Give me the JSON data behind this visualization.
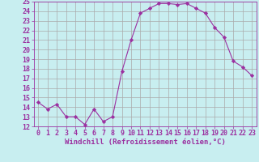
{
  "x": [
    0,
    1,
    2,
    3,
    4,
    5,
    6,
    7,
    8,
    9,
    10,
    11,
    12,
    13,
    14,
    15,
    16,
    17,
    18,
    19,
    20,
    21,
    22,
    23
  ],
  "y": [
    14.5,
    13.8,
    14.3,
    13.0,
    13.0,
    12.2,
    13.8,
    12.5,
    13.0,
    17.7,
    21.0,
    23.8,
    24.3,
    24.8,
    24.8,
    24.7,
    24.8,
    24.3,
    23.8,
    22.3,
    21.3,
    18.8,
    18.2,
    17.3
  ],
  "line_color": "#9B30A0",
  "marker": "D",
  "marker_size": 2.2,
  "bg_color": "#C8EEF0",
  "grid_color": "#AAAAAA",
  "xlabel": "Windchill (Refroidissement éolien,°C)",
  "xlabel_fontsize": 6.5,
  "tick_fontsize": 6.0,
  "ylim": [
    12,
    25
  ],
  "xlim": [
    -0.5,
    23.5
  ],
  "yticks": [
    12,
    13,
    14,
    15,
    16,
    17,
    18,
    19,
    20,
    21,
    22,
    23,
    24,
    25
  ],
  "xticks": [
    0,
    1,
    2,
    3,
    4,
    5,
    6,
    7,
    8,
    9,
    10,
    11,
    12,
    13,
    14,
    15,
    16,
    17,
    18,
    19,
    20,
    21,
    22,
    23
  ]
}
